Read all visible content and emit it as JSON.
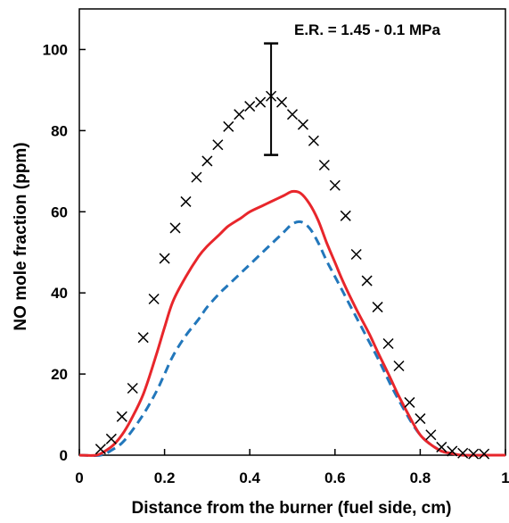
{
  "chart_data": {
    "type": "scatter",
    "title": "",
    "annotation": "E.R. = 1.45 - 0.1 MPa",
    "xlabel": "Distance from the burner (fuel side, cm)",
    "ylabel": "NO mole fraction (ppm)",
    "xlim": [
      0,
      1
    ],
    "ylim": [
      0,
      110
    ],
    "x_ticks": [
      "0",
      "0.2",
      "0.4",
      "0.6",
      "0.8",
      "1"
    ],
    "y_ticks": [
      "0",
      "20",
      "40",
      "60",
      "80",
      "100"
    ],
    "grid": false,
    "legend": "none",
    "colors": {
      "experiment": "#000000",
      "solid": "#e8262b",
      "dashed": "#2277bb"
    },
    "series": [
      {
        "style": "x-markers",
        "x": [
          0.05,
          0.075,
          0.1,
          0.125,
          0.15,
          0.175,
          0.2,
          0.225,
          0.25,
          0.275,
          0.3,
          0.325,
          0.35,
          0.375,
          0.4,
          0.425,
          0.45,
          0.475,
          0.5,
          0.525,
          0.55,
          0.575,
          0.6,
          0.625,
          0.65,
          0.675,
          0.7,
          0.725,
          0.75,
          0.775,
          0.8,
          0.825,
          0.85,
          0.875,
          0.9,
          0.925,
          0.95
        ],
        "y": [
          1.5,
          4,
          9.5,
          16.5,
          29,
          38.5,
          48.5,
          56,
          62.5,
          68.5,
          72.5,
          76.5,
          81,
          84,
          86,
          87,
          88.5,
          87,
          84,
          81.5,
          77.5,
          71.5,
          66.5,
          59,
          49.5,
          43,
          36.5,
          27.5,
          22,
          13,
          9,
          5,
          2,
          1,
          0.5,
          0.3,
          0.3
        ]
      },
      {
        "style": "solid-line",
        "x": [
          0,
          0.04,
          0.06,
          0.08,
          0.1,
          0.12,
          0.15,
          0.18,
          0.2,
          0.22,
          0.25,
          0.28,
          0.3,
          0.33,
          0.35,
          0.38,
          0.4,
          0.43,
          0.45,
          0.48,
          0.5,
          0.52,
          0.54,
          0.56,
          0.58,
          0.6,
          0.62,
          0.65,
          0.68,
          0.7,
          0.73,
          0.75,
          0.78,
          0.8,
          0.82,
          0.85,
          0.87,
          0.9,
          0.95,
          1.0
        ],
        "y": [
          0,
          0,
          1,
          2.5,
          5,
          8.5,
          15,
          24.5,
          31.5,
          38,
          44,
          49,
          51.5,
          54.5,
          56.5,
          58.5,
          60,
          61.5,
          62.5,
          64,
          65,
          64.5,
          62,
          58,
          52.5,
          47.5,
          42.5,
          36,
          30,
          25.5,
          19,
          14.5,
          8.5,
          5,
          3,
          1,
          0.5,
          0,
          0,
          0
        ]
      },
      {
        "style": "dashed-line",
        "x": [
          0,
          0.05,
          0.08,
          0.1,
          0.12,
          0.15,
          0.18,
          0.2,
          0.22,
          0.25,
          0.28,
          0.3,
          0.33,
          0.35,
          0.38,
          0.4,
          0.43,
          0.45,
          0.48,
          0.5,
          0.52,
          0.54,
          0.56,
          0.58,
          0.6,
          0.62,
          0.65,
          0.68,
          0.7,
          0.73,
          0.75,
          0.78,
          0.8,
          0.82,
          0.85,
          0.87,
          0.9,
          0.95,
          1.0
        ],
        "y": [
          0,
          0,
          1.5,
          3,
          5.5,
          10,
          15.5,
          20,
          24.5,
          29.5,
          33.5,
          36.5,
          40,
          42,
          45,
          47,
          50,
          52,
          55,
          57,
          57.5,
          56,
          52.5,
          48,
          44,
          40,
          34,
          28,
          24,
          17.5,
          13.5,
          8,
          5,
          3,
          1,
          0.5,
          0,
          0,
          0
        ]
      }
    ],
    "error_bar": {
      "x": 0.45,
      "y_low": 74,
      "y_high": 101.5
    }
  }
}
